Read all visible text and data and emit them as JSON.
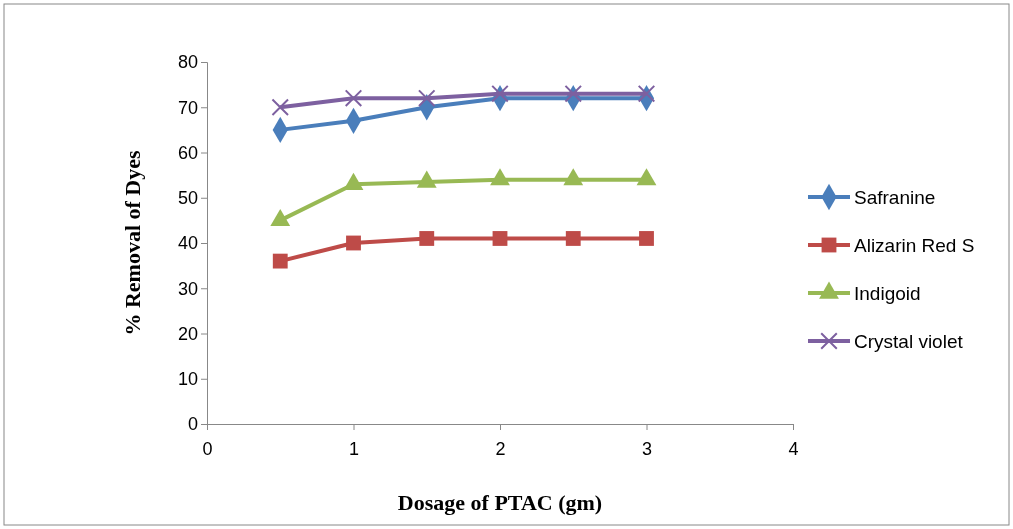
{
  "chart_data": {
    "type": "line",
    "xlabel": "Dosage of PTAC (gm)",
    "ylabel": "% Removal of Dyes",
    "x": [
      0.5,
      1,
      1.5,
      2,
      2.5,
      3
    ],
    "xlim": [
      0,
      4
    ],
    "xticks": [
      0,
      1,
      2,
      3,
      4
    ],
    "ylim": [
      0,
      80
    ],
    "yticks": [
      0,
      10,
      20,
      30,
      40,
      50,
      60,
      70,
      80
    ],
    "grid": false,
    "legend": "right",
    "series": [
      {
        "name": "Safranine",
        "color": "#4a7ebb",
        "marker": "diamond",
        "values": [
          65,
          67,
          70,
          72,
          72,
          72
        ]
      },
      {
        "name": "Alizarin Red S",
        "color": "#be4b48",
        "marker": "square",
        "values": [
          36,
          40,
          41,
          41,
          41,
          41
        ]
      },
      {
        "name": "Indigoid",
        "color": "#98b954",
        "marker": "triangle",
        "values": [
          45,
          53,
          53.5,
          54,
          54,
          54
        ]
      },
      {
        "name": "Crystal violet",
        "color": "#7d60a0",
        "marker": "cross",
        "values": [
          70,
          72,
          72,
          73,
          73,
          73
        ]
      }
    ]
  }
}
